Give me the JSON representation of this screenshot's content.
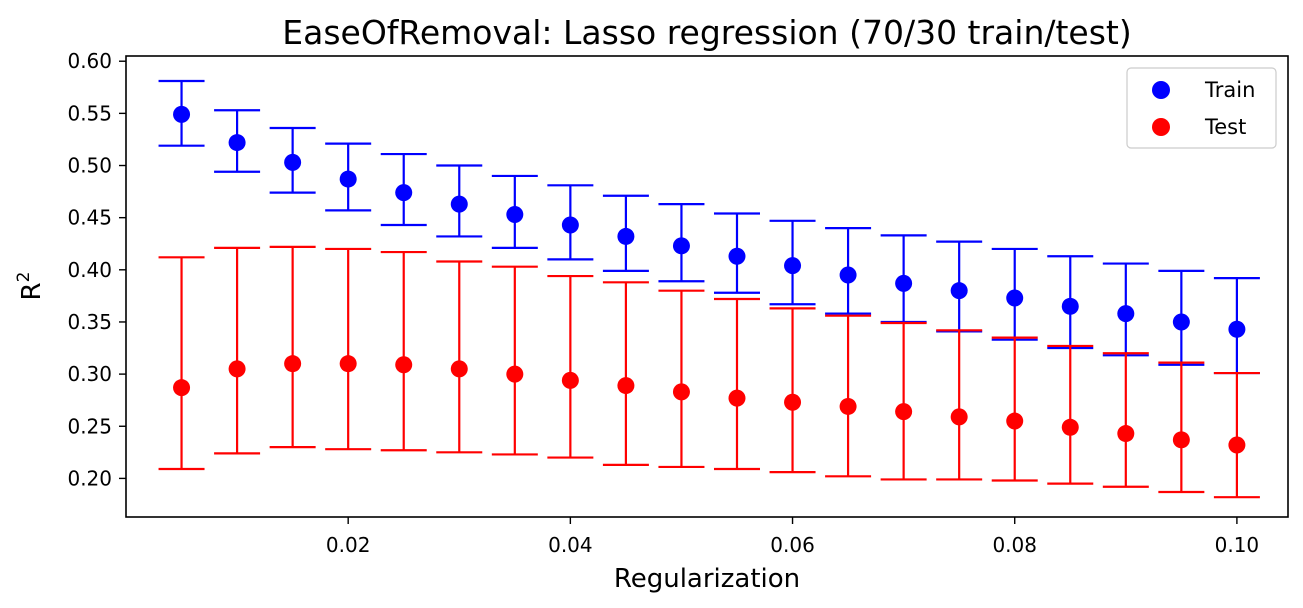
{
  "chart_data": {
    "type": "scatter",
    "title": "EaseOfRemoval: Lasso regression (70/30 train/test)",
    "xlabel": "Regularization",
    "ylabel_base": "R",
    "ylabel_sup": "2",
    "xlim": [
      0.0,
      0.1046
    ],
    "ylim": [
      0.163,
      0.605
    ],
    "xticks": [
      0.02,
      0.04,
      0.06,
      0.08,
      0.1
    ],
    "xtick_labels": [
      "0.02",
      "0.04",
      "0.06",
      "0.08",
      "0.10"
    ],
    "yticks": [
      0.2,
      0.25,
      0.3,
      0.35,
      0.4,
      0.45,
      0.5,
      0.55,
      0.6
    ],
    "ytick_labels": [
      "0.20",
      "0.25",
      "0.30",
      "0.35",
      "0.40",
      "0.45",
      "0.50",
      "0.55",
      "0.60"
    ],
    "grid": false,
    "legend_position": "top-right",
    "x": [
      0.005,
      0.01,
      0.015,
      0.02,
      0.025,
      0.03,
      0.035,
      0.04,
      0.045,
      0.05,
      0.055,
      0.06,
      0.065,
      0.07,
      0.075,
      0.08,
      0.085,
      0.09,
      0.095,
      0.1
    ],
    "series": [
      {
        "name": "Train",
        "color": "#0000ff",
        "values": [
          0.549,
          0.522,
          0.503,
          0.487,
          0.474,
          0.463,
          0.453,
          0.443,
          0.432,
          0.423,
          0.413,
          0.404,
          0.395,
          0.387,
          0.38,
          0.373,
          0.365,
          0.358,
          0.35,
          0.343
        ],
        "err_low": [
          0.519,
          0.494,
          0.474,
          0.457,
          0.443,
          0.432,
          0.421,
          0.41,
          0.399,
          0.389,
          0.378,
          0.367,
          0.358,
          0.35,
          0.341,
          0.333,
          0.325,
          0.318,
          0.309,
          0.301
        ],
        "err_high": [
          0.581,
          0.553,
          0.536,
          0.521,
          0.511,
          0.5,
          0.49,
          0.481,
          0.471,
          0.463,
          0.454,
          0.447,
          0.44,
          0.433,
          0.427,
          0.42,
          0.413,
          0.406,
          0.399,
          0.392
        ]
      },
      {
        "name": "Test",
        "color": "#ff0000",
        "values": [
          0.287,
          0.305,
          0.31,
          0.31,
          0.309,
          0.305,
          0.3,
          0.294,
          0.289,
          0.283,
          0.277,
          0.273,
          0.269,
          0.264,
          0.259,
          0.255,
          0.249,
          0.243,
          0.237,
          0.232
        ],
        "err_low": [
          0.209,
          0.224,
          0.23,
          0.228,
          0.227,
          0.225,
          0.223,
          0.22,
          0.213,
          0.211,
          0.209,
          0.206,
          0.202,
          0.199,
          0.199,
          0.198,
          0.195,
          0.192,
          0.187,
          0.182
        ],
        "err_high": [
          0.412,
          0.421,
          0.422,
          0.42,
          0.417,
          0.408,
          0.403,
          0.394,
          0.388,
          0.38,
          0.372,
          0.363,
          0.356,
          0.349,
          0.342,
          0.335,
          0.327,
          0.32,
          0.311,
          0.301
        ]
      }
    ]
  }
}
